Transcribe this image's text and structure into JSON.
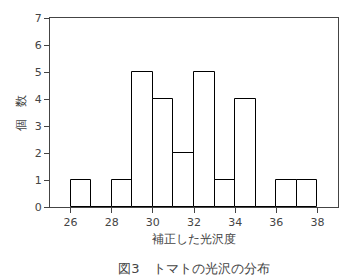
{
  "chart_data": {
    "type": "histogram",
    "title": "図3　トマトの光沢の分布",
    "xlabel": "補正した光沢度",
    "ylabel": "個　数",
    "bins": [
      26,
      27,
      28,
      29,
      30,
      31,
      32,
      33,
      34,
      35,
      36,
      37,
      38
    ],
    "values": [
      1,
      0,
      1,
      5,
      4,
      2,
      5,
      1,
      4,
      0,
      1,
      1
    ],
    "color": "#ffffff",
    "xlim": [
      25,
      39
    ],
    "ylim": [
      0,
      7
    ],
    "xticks": [
      26,
      28,
      30,
      32,
      34,
      36,
      38
    ],
    "yticks": [
      0,
      1,
      2,
      3,
      4,
      5,
      6,
      7
    ],
    "grid": false
  }
}
